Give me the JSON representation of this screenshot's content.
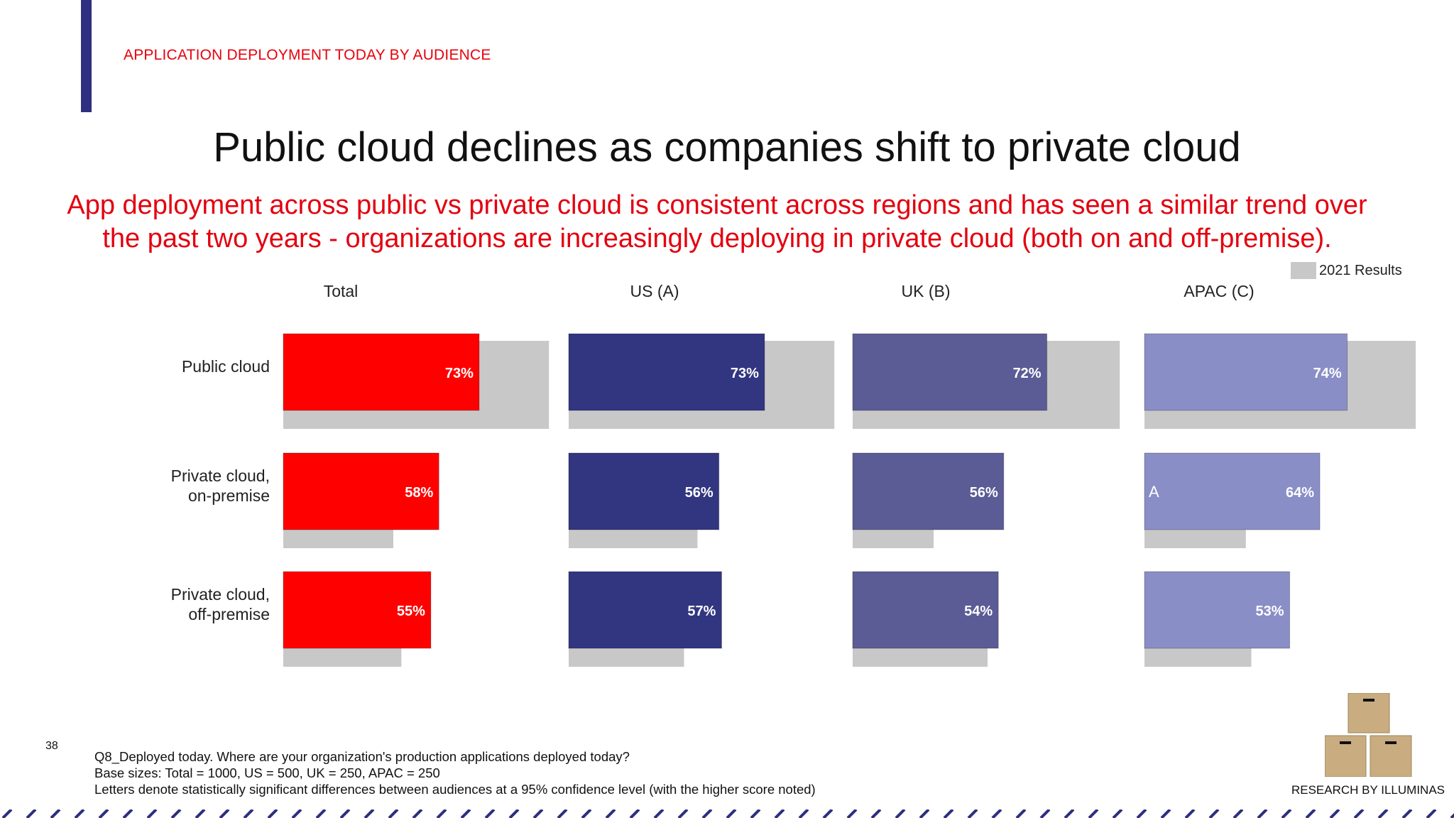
{
  "header": {
    "section_label": "APPLICATION DEPLOYMENT TODAY BY AUDIENCE"
  },
  "title": "Public cloud declines as companies shift to private cloud",
  "subtitle": {
    "line1": "App deployment across public vs private cloud is consistent across regions and has seen a similar trend over",
    "line2": "the past two years - organizations are increasingly deploying in private cloud (both on and off-premise)."
  },
  "legend": {
    "label": "2021 Results",
    "color": "#c8c8c8"
  },
  "chart_data": {
    "type": "bar",
    "orientation": "horizontal",
    "categories": [
      "Public cloud",
      "Private cloud, on-premise",
      "Private cloud, off-premise"
    ],
    "category_label_lines": [
      [
        "Public cloud"
      ],
      [
        "Private cloud,",
        "on-premise"
      ],
      [
        "Private cloud,",
        "off-premise"
      ]
    ],
    "panels": [
      {
        "name": "Total",
        "color": "#ff0000",
        "values": [
          73,
          58,
          55
        ],
        "value_labels": [
          "73%",
          "58%",
          "55%"
        ],
        "prior_values": [
          99,
          41,
          44
        ],
        "significance": [
          "",
          "",
          ""
        ]
      },
      {
        "name": "US (A)",
        "color": "#323580",
        "values": [
          73,
          56,
          57
        ],
        "value_labels": [
          "73%",
          "56%",
          "57%"
        ],
        "prior_values": [
          99,
          48,
          43
        ],
        "significance": [
          "",
          "",
          ""
        ]
      },
      {
        "name": "UK (B)",
        "color": "#5b5b96",
        "values": [
          72,
          56,
          54
        ],
        "value_labels": [
          "72%",
          "56%",
          "54%"
        ],
        "prior_values": [
          99,
          30,
          50
        ],
        "significance": [
          "",
          "",
          ""
        ]
      },
      {
        "name": "APAC (C)",
        "color": "#8a8ec6",
        "values": [
          74,
          64,
          53
        ],
        "value_labels": [
          "74%",
          "64%",
          "53%"
        ],
        "prior_values": [
          99,
          37,
          39
        ],
        "significance": [
          "",
          "A",
          ""
        ]
      }
    ],
    "prior_series_name": "2021 Results",
    "legend_position": "top-right",
    "grid": false
  },
  "footer": {
    "page_number": "38",
    "notes": [
      "Q8_Deployed today. Where are your organization's production applications deployed today?",
      "Base sizes: Total = 1000, US = 500, UK = 250, APAC = 250",
      "Letters denote statistically significant differences between audiences at a 95% confidence level (with the higher score noted)"
    ],
    "credit": "RESEARCH BY ILLUMINAS"
  },
  "colors": {
    "accent": "#2e2f7e",
    "red": "#e3000f"
  },
  "icons": {
    "logo": "stacked-boxes-logo"
  }
}
